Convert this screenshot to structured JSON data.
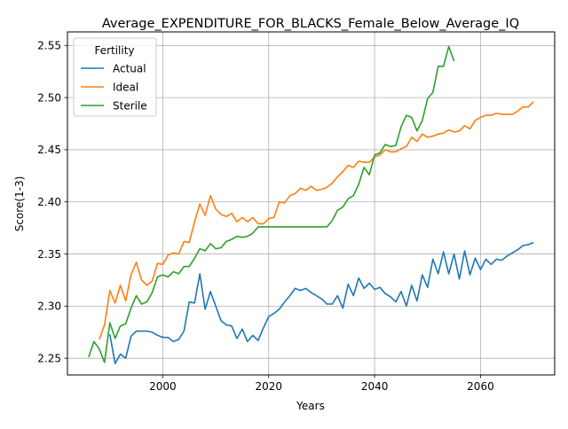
{
  "chart_data": {
    "type": "line",
    "title": "Average_EXPENDITURE_FOR_BLACKS_Female_Below_Average_IQ",
    "xlabel": "Years",
    "ylabel": "Score(1-3)",
    "xlim": [
      1982,
      2074
    ],
    "ylim": [
      2.234,
      2.563
    ],
    "x_ticks": [
      2000,
      2020,
      2040,
      2060
    ],
    "x_tick_labels": [
      "2000",
      "2020",
      "2040",
      "2060"
    ],
    "y_ticks": [
      2.25,
      2.3,
      2.35,
      2.4,
      2.45,
      2.5,
      2.55
    ],
    "y_tick_labels": [
      "2.25",
      "2.30",
      "2.35",
      "2.40",
      "2.45",
      "2.50",
      "2.55"
    ],
    "grid": true,
    "legend": {
      "title": "Fertility",
      "placement": "upper-left"
    },
    "series": [
      {
        "name": "Actual",
        "color": "#1f77b4",
        "points": [
          [
            1990,
            2.273
          ],
          [
            1991,
            2.245
          ],
          [
            1992,
            2.254
          ],
          [
            1993,
            2.25
          ],
          [
            1994,
            2.271
          ],
          [
            1995,
            2.276
          ],
          [
            1996,
            2.276
          ],
          [
            1997,
            2.276
          ],
          [
            1998,
            2.275
          ],
          [
            1999,
            2.272
          ],
          [
            2000,
            2.27
          ],
          [
            2001,
            2.27
          ],
          [
            2002,
            2.266
          ],
          [
            2003,
            2.268
          ],
          [
            2004,
            2.276
          ],
          [
            2005,
            2.304
          ],
          [
            2006,
            2.303
          ],
          [
            2007,
            2.331
          ],
          [
            2008,
            2.297
          ],
          [
            2009,
            2.314
          ],
          [
            2010,
            2.3
          ],
          [
            2011,
            2.286
          ],
          [
            2012,
            2.282
          ],
          [
            2013,
            2.281
          ],
          [
            2014,
            2.269
          ],
          [
            2015,
            2.278
          ],
          [
            2016,
            2.266
          ],
          [
            2017,
            2.272
          ],
          [
            2018,
            2.267
          ],
          [
            2019,
            2.279
          ],
          [
            2020,
            2.29
          ],
          [
            2021,
            2.293
          ],
          [
            2022,
            2.297
          ],
          [
            2023,
            2.304
          ],
          [
            2024,
            2.31
          ],
          [
            2025,
            2.317
          ],
          [
            2026,
            2.315
          ],
          [
            2027,
            2.317
          ],
          [
            2028,
            2.313
          ],
          [
            2029,
            2.31
          ],
          [
            2030,
            2.307
          ],
          [
            2031,
            2.302
          ],
          [
            2032,
            2.302
          ],
          [
            2033,
            2.31
          ],
          [
            2034,
            2.298
          ],
          [
            2035,
            2.321
          ],
          [
            2036,
            2.31
          ],
          [
            2037,
            2.327
          ],
          [
            2038,
            2.317
          ],
          [
            2039,
            2.322
          ],
          [
            2040,
            2.316
          ],
          [
            2041,
            2.318
          ],
          [
            2042,
            2.312
          ],
          [
            2043,
            2.309
          ],
          [
            2044,
            2.304
          ],
          [
            2045,
            2.314
          ],
          [
            2046,
            2.3
          ],
          [
            2047,
            2.32
          ],
          [
            2048,
            2.305
          ],
          [
            2049,
            2.33
          ],
          [
            2050,
            2.318
          ],
          [
            2051,
            2.345
          ],
          [
            2052,
            2.331
          ],
          [
            2053,
            2.352
          ],
          [
            2054,
            2.331
          ],
          [
            2055,
            2.35
          ],
          [
            2056,
            2.326
          ],
          [
            2057,
            2.353
          ],
          [
            2058,
            2.33
          ],
          [
            2059,
            2.346
          ],
          [
            2060,
            2.335
          ],
          [
            2061,
            2.345
          ],
          [
            2062,
            2.34
          ],
          [
            2063,
            2.345
          ],
          [
            2064,
            2.344
          ],
          [
            2065,
            2.348
          ],
          [
            2066,
            2.351
          ],
          [
            2067,
            2.354
          ],
          [
            2068,
            2.358
          ],
          [
            2069,
            2.359
          ],
          [
            2070,
            2.361
          ]
        ]
      },
      {
        "name": "Ideal",
        "color": "#ff7f0e",
        "points": [
          [
            1988,
            2.268
          ],
          [
            1989,
            2.282
          ],
          [
            1990,
            2.315
          ],
          [
            1991,
            2.303
          ],
          [
            1992,
            2.32
          ],
          [
            1993,
            2.305
          ],
          [
            1994,
            2.33
          ],
          [
            1995,
            2.342
          ],
          [
            1996,
            2.325
          ],
          [
            1997,
            2.32
          ],
          [
            1998,
            2.324
          ],
          [
            1999,
            2.341
          ],
          [
            2000,
            2.34
          ],
          [
            2001,
            2.349
          ],
          [
            2002,
            2.351
          ],
          [
            2003,
            2.35
          ],
          [
            2004,
            2.362
          ],
          [
            2005,
            2.361
          ],
          [
            2006,
            2.381
          ],
          [
            2007,
            2.398
          ],
          [
            2008,
            2.387
          ],
          [
            2009,
            2.406
          ],
          [
            2010,
            2.393
          ],
          [
            2011,
            2.388
          ],
          [
            2012,
            2.386
          ],
          [
            2013,
            2.389
          ],
          [
            2014,
            2.381
          ],
          [
            2015,
            2.385
          ],
          [
            2016,
            2.381
          ],
          [
            2017,
            2.385
          ],
          [
            2018,
            2.379
          ],
          [
            2019,
            2.379
          ],
          [
            2020,
            2.384
          ],
          [
            2021,
            2.385
          ],
          [
            2022,
            2.4
          ],
          [
            2023,
            2.399
          ],
          [
            2024,
            2.406
          ],
          [
            2025,
            2.408
          ],
          [
            2026,
            2.413
          ],
          [
            2027,
            2.411
          ],
          [
            2028,
            2.415
          ],
          [
            2029,
            2.411
          ],
          [
            2030,
            2.412
          ],
          [
            2031,
            2.414
          ],
          [
            2032,
            2.418
          ],
          [
            2033,
            2.424
          ],
          [
            2034,
            2.429
          ],
          [
            2035,
            2.435
          ],
          [
            2036,
            2.433
          ],
          [
            2037,
            2.439
          ],
          [
            2038,
            2.438
          ],
          [
            2039,
            2.438
          ],
          [
            2040,
            2.443
          ],
          [
            2041,
            2.445
          ],
          [
            2042,
            2.45
          ],
          [
            2043,
            2.448
          ],
          [
            2044,
            2.448
          ],
          [
            2045,
            2.451
          ],
          [
            2046,
            2.453
          ],
          [
            2047,
            2.462
          ],
          [
            2048,
            2.458
          ],
          [
            2049,
            2.465
          ],
          [
            2050,
            2.462
          ],
          [
            2051,
            2.463
          ],
          [
            2052,
            2.465
          ],
          [
            2053,
            2.466
          ],
          [
            2054,
            2.469
          ],
          [
            2055,
            2.467
          ],
          [
            2056,
            2.468
          ],
          [
            2057,
            2.473
          ],
          [
            2058,
            2.47
          ],
          [
            2059,
            2.478
          ],
          [
            2060,
            2.481
          ],
          [
            2061,
            2.483
          ],
          [
            2062,
            2.483
          ],
          [
            2063,
            2.485
          ],
          [
            2064,
            2.484
          ],
          [
            2065,
            2.484
          ],
          [
            2066,
            2.484
          ],
          [
            2067,
            2.487
          ],
          [
            2068,
            2.491
          ],
          [
            2069,
            2.491
          ],
          [
            2070,
            2.496
          ]
        ]
      },
      {
        "name": "Sterile",
        "color": "#2ca02c",
        "points": [
          [
            1986,
            2.251
          ],
          [
            1987,
            2.266
          ],
          [
            1988,
            2.259
          ],
          [
            1989,
            2.246
          ],
          [
            1990,
            2.284
          ],
          [
            1991,
            2.269
          ],
          [
            1992,
            2.281
          ],
          [
            1993,
            2.283
          ],
          [
            1994,
            2.298
          ],
          [
            1995,
            2.31
          ],
          [
            1996,
            2.302
          ],
          [
            1997,
            2.304
          ],
          [
            1998,
            2.313
          ],
          [
            1999,
            2.328
          ],
          [
            2000,
            2.33
          ],
          [
            2001,
            2.328
          ],
          [
            2002,
            2.333
          ],
          [
            2003,
            2.331
          ],
          [
            2004,
            2.338
          ],
          [
            2005,
            2.338
          ],
          [
            2006,
            2.346
          ],
          [
            2007,
            2.355
          ],
          [
            2008,
            2.353
          ],
          [
            2009,
            2.36
          ],
          [
            2010,
            2.355
          ],
          [
            2011,
            2.356
          ],
          [
            2012,
            2.362
          ],
          [
            2013,
            2.364
          ],
          [
            2014,
            2.367
          ],
          [
            2015,
            2.366
          ],
          [
            2016,
            2.367
          ],
          [
            2017,
            2.37
          ],
          [
            2018,
            2.376
          ],
          [
            2019,
            2.376
          ],
          [
            2020,
            2.376
          ],
          [
            2021,
            2.376
          ],
          [
            2022,
            2.376
          ],
          [
            2023,
            2.376
          ],
          [
            2024,
            2.376
          ],
          [
            2025,
            2.376
          ],
          [
            2026,
            2.376
          ],
          [
            2027,
            2.376
          ],
          [
            2028,
            2.376
          ],
          [
            2029,
            2.376
          ],
          [
            2030,
            2.376
          ],
          [
            2031,
            2.376
          ],
          [
            2032,
            2.382
          ],
          [
            2033,
            2.392
          ],
          [
            2034,
            2.395
          ],
          [
            2035,
            2.403
          ],
          [
            2036,
            2.406
          ],
          [
            2037,
            2.417
          ],
          [
            2038,
            2.433
          ],
          [
            2039,
            2.426
          ],
          [
            2040,
            2.445
          ],
          [
            2041,
            2.447
          ],
          [
            2042,
            2.455
          ],
          [
            2043,
            2.453
          ],
          [
            2044,
            2.454
          ],
          [
            2045,
            2.472
          ],
          [
            2046,
            2.483
          ],
          [
            2047,
            2.481
          ],
          [
            2048,
            2.468
          ],
          [
            2049,
            2.478
          ],
          [
            2050,
            2.499
          ],
          [
            2051,
            2.505
          ],
          [
            2052,
            2.53
          ],
          [
            2053,
            2.53
          ],
          [
            2054,
            2.549
          ],
          [
            2055,
            2.535
          ]
        ]
      }
    ]
  }
}
